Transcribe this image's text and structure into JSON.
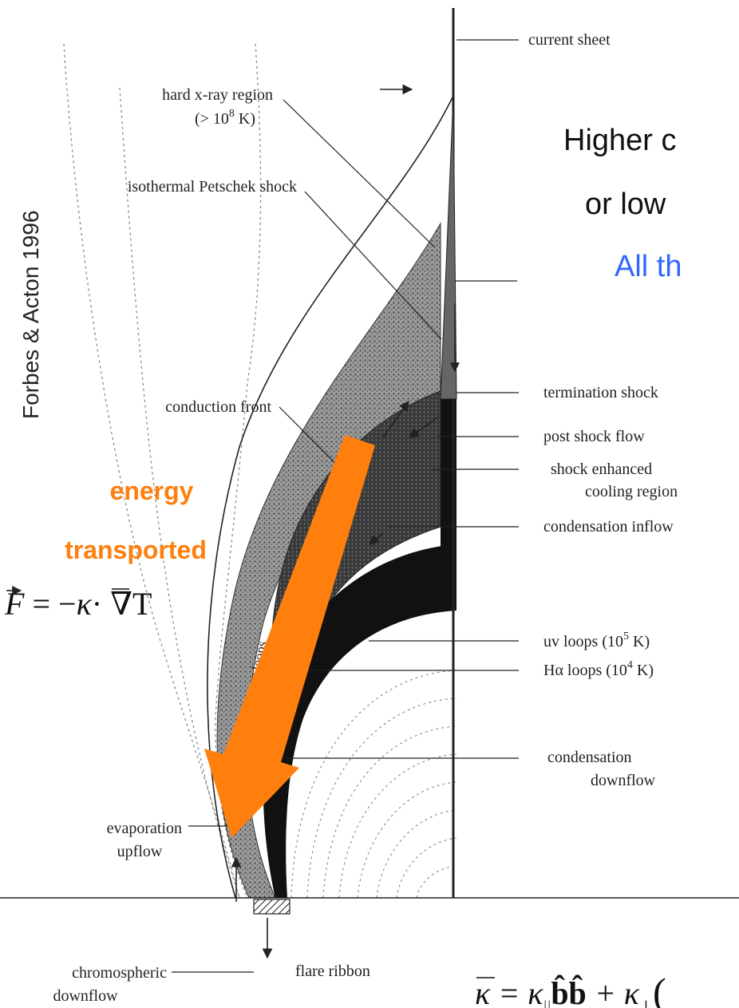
{
  "citation": "Forbes & Acton 1996",
  "slide_text": {
    "line1": "Higher c",
    "line2": "or low",
    "line3": "All th"
  },
  "colors": {
    "accent_orange": "#FF7F0E",
    "blue_text": "#3366FF",
    "ink": "#222222"
  },
  "labels": {
    "current_sheet": "current sheet",
    "hard_xray": "hard x-ray region",
    "hard_xray_temp_pre": "(> 10",
    "hard_xray_temp_exp": "8",
    "hard_xray_temp_post": " K)",
    "petschek": "isothermal Petschek shock",
    "conduction_front": "conduction front",
    "termination_shock": "termination shock",
    "post_shock_flow": "post shock flow",
    "shock_enhanced_1": "shock enhanced",
    "shock_enhanced_2": "cooling region",
    "condensation_inflow": "condensation inflow",
    "uv_loops_pre": "uv loops (10",
    "uv_loops_exp": "5",
    "uv_loops_post": " K)",
    "halpha_pre": "Hα loops (10",
    "halpha_exp": "4",
    "halpha_post": " K)",
    "condensation": "condensation",
    "downflow": "downflow",
    "evaporation": "evaporation",
    "upflow": "upflow",
    "chromospheric": "chromospheric",
    "chromo_downflow": "downflow",
    "flare_ribbon": "flare ribbon",
    "xray_loops": "x-ray loops"
  },
  "annotation": {
    "energy_1": "energy",
    "energy_2": "transported"
  },
  "equations": {
    "flux_lhs": "F",
    "flux_eq": " = −",
    "flux_kappa": "κ",
    "flux_rhs": "· ∇T",
    "kappa_lhs": "κ",
    "kappa_eq": " = κ",
    "kappa_par_sub": "||",
    "kappa_bb": "b̂b̂",
    "kappa_plus": " + κ",
    "kappa_perp_sub": "⊥",
    "kappa_paren": "("
  }
}
